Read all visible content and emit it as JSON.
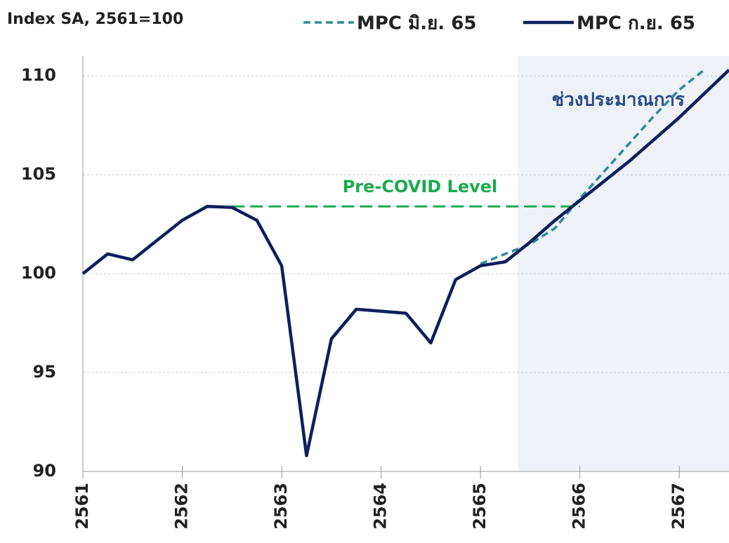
{
  "chart_data": {
    "type": "line",
    "ylabel": "Index SA, 2561=100",
    "xlim": [
      2561,
      2567.5
    ],
    "ylim": [
      90,
      111
    ],
    "xticks": [
      2561,
      2562,
      2563,
      2564,
      2565,
      2566,
      2567
    ],
    "yticks": [
      90,
      95,
      100,
      105,
      110
    ],
    "grid": true,
    "legend": "top",
    "forecast_region": {
      "label": "ช่วงประมาณการ",
      "x": [
        2565.375,
        2567.5
      ],
      "color": "#eef1f8"
    },
    "reference_line": {
      "label": "Pre-COVID Level",
      "value": 103.4,
      "x": [
        2562.5,
        2566
      ],
      "color": "#1aab4b"
    },
    "series": [
      {
        "name": "MPC มิ.ย. 65",
        "color": "#2e8a9a",
        "dashed": true,
        "x": [
          2565,
          2565.25,
          2565.5,
          2565.75,
          2566,
          2566.25,
          2566.5,
          2566.75,
          2567,
          2567.25
        ],
        "values": [
          100.5,
          101.0,
          101.5,
          102.3,
          103.8,
          105.2,
          106.6,
          108.0,
          109.3,
          110.3
        ]
      },
      {
        "name": "MPC ก.ย. 65",
        "color": "#0d1f5c",
        "dashed": false,
        "x": [
          2561,
          2561.25,
          2561.5,
          2561.75,
          2562,
          2562.25,
          2562.5,
          2562.75,
          2563,
          2563.25,
          2563.5,
          2563.75,
          2564,
          2564.25,
          2564.5,
          2564.75,
          2565,
          2565.25,
          2565.5,
          2565.75,
          2566,
          2566.25,
          2566.5,
          2566.75,
          2567,
          2567.25,
          2567.5
        ],
        "values": [
          100,
          101.0,
          100.7,
          101.7,
          102.7,
          103.4,
          103.35,
          102.7,
          100.4,
          90.8,
          96.7,
          98.2,
          98.1,
          98.0,
          96.5,
          99.7,
          100.4,
          100.6,
          101.6,
          102.7,
          103.7,
          104.7,
          105.7,
          106.8,
          107.9,
          109.1,
          110.3
        ]
      }
    ]
  }
}
